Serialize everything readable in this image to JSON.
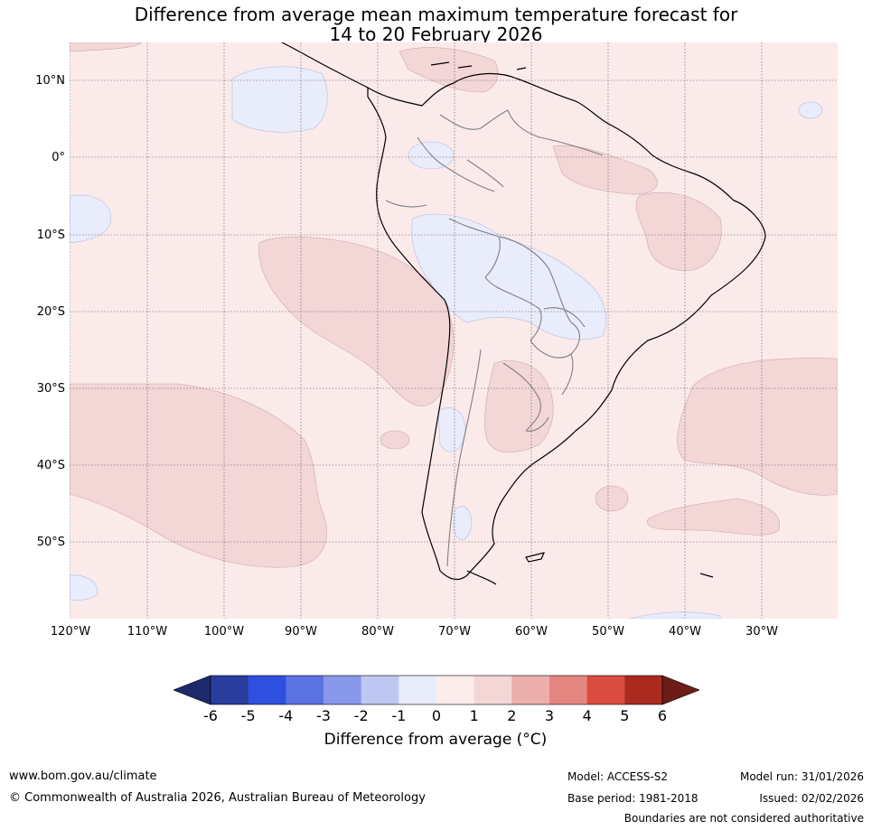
{
  "title": {
    "line1": "Difference from average mean maximum temperature forecast for",
    "line2": "14 to 20 February 2026"
  },
  "map": {
    "region": "South America",
    "lat_labels": [
      "10°N",
      "0°",
      "10°S",
      "20°S",
      "30°S",
      "40°S",
      "50°S"
    ],
    "lon_labels": [
      "120°W",
      "110°W",
      "100°W",
      "90°W",
      "80°W",
      "70°W",
      "60°W",
      "50°W",
      "40°W",
      "30°W"
    ],
    "colors": {
      "ocean_background": "#fbeaea",
      "anomaly_1_to_2": "#f3d6d6",
      "anomaly_neg1_to_0": "#e8ecfb",
      "coastline": "#000000",
      "borders": "#808080"
    }
  },
  "colorbar": {
    "ticks": [
      "-6",
      "-5",
      "-4",
      "-3",
      "-2",
      "-1",
      "0",
      "1",
      "2",
      "3",
      "4",
      "5",
      "6"
    ],
    "colors": [
      "#283d9d",
      "#2f50de",
      "#5b72e2",
      "#8898ea",
      "#bec6f2",
      "#e8ebf9",
      "#fcecec",
      "#f5d6d6",
      "#ecaeab",
      "#e58580",
      "#d94c3f",
      "#ab2a20"
    ],
    "low_extension_color": "#1c2a6b",
    "high_extension_color": "#6d1c18",
    "label": "Difference from average (°C)"
  },
  "footer": {
    "website": "www.bom.gov.au/climate",
    "copyright": "© Commonwealth of Australia 2026, Australian Bureau of Meteorology",
    "model": "Model: ACCESS-S2",
    "base_period": "Base period: 1981-2018",
    "model_run": "Model run: 31/01/2026",
    "issued": "Issued: 02/02/2026",
    "disclaimer": "Boundaries are not considered authoritative"
  }
}
